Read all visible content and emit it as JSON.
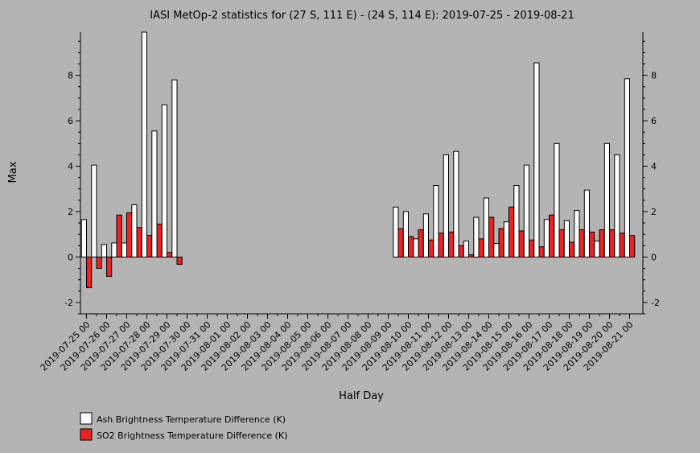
{
  "chart_data": {
    "type": "bar",
    "title": "IASI MetOp-2 statistics for (27 S, 111 E) - (24 S, 114 E): 2019-07-25 - 2019-08-21",
    "xlabel": "Half Day",
    "ylabel": "Max",
    "ylim": [
      -2.5,
      9.9
    ],
    "yticks": [
      -2,
      0,
      2,
      4,
      6,
      8
    ],
    "grid": false,
    "legend_position": "bottom-left",
    "date_ticks": [
      "2019-07-25 00",
      "2019-07-26 00",
      "2019-07-27 00",
      "2019-07-28 00",
      "2019-07-29 00",
      "2019-07-30 00",
      "2019-07-31 00",
      "2019-08-01 00",
      "2019-08-02 00",
      "2019-08-03 00",
      "2019-08-04 00",
      "2019-08-05 00",
      "2019-08-06 00",
      "2019-08-07 00",
      "2019-08-08 00",
      "2019-08-09 00",
      "2019-08-10 00",
      "2019-08-11 00",
      "2019-08-12 00",
      "2019-08-13 00",
      "2019-08-14 00",
      "2019-08-15 00",
      "2019-08-16 00",
      "2019-08-17 00",
      "2019-08-18 00",
      "2019-08-19 00",
      "2019-08-20 00",
      "2019-08-21 00"
    ],
    "categories": [
      "2019-07-25 00",
      "2019-07-25 12",
      "2019-07-26 00",
      "2019-07-26 12",
      "2019-07-27 00",
      "2019-07-27 12",
      "2019-07-28 00",
      "2019-07-28 12",
      "2019-07-29 00",
      "2019-07-29 12",
      "2019-08-09 12",
      "2019-08-10 00",
      "2019-08-10 12",
      "2019-08-11 00",
      "2019-08-11 12",
      "2019-08-12 00",
      "2019-08-12 12",
      "2019-08-13 00",
      "2019-08-13 12",
      "2019-08-14 00",
      "2019-08-14 12",
      "2019-08-15 00",
      "2019-08-15 12",
      "2019-08-16 00",
      "2019-08-16 12",
      "2019-08-17 00",
      "2019-08-17 12",
      "2019-08-18 00",
      "2019-08-18 12",
      "2019-08-19 00",
      "2019-08-19 12",
      "2019-08-20 00",
      "2019-08-20 12",
      "2019-08-21 00"
    ],
    "series": [
      {
        "name": "Ash Brightness Temperature Difference (K)",
        "color": "#ffffff",
        "values": [
          1.65,
          4.05,
          0.55,
          0.62,
          0.62,
          2.3,
          9.9,
          5.55,
          6.7,
          7.8,
          2.2,
          2.0,
          0.8,
          1.9,
          3.15,
          4.5,
          4.65,
          0.7,
          1.75,
          2.6,
          0.6,
          1.55,
          3.15,
          4.05,
          8.55,
          1.65,
          5.0,
          1.6,
          2.05,
          2.95,
          0.7,
          5.0,
          4.5,
          7.85
        ]
      },
      {
        "name": "SO2 Brightness Temperature Difference (K)",
        "color": "#ee2222",
        "values": [
          -1.35,
          -0.5,
          -0.85,
          1.85,
          1.95,
          1.3,
          0.95,
          1.45,
          0.2,
          -0.32,
          1.25,
          0.9,
          1.2,
          0.75,
          1.05,
          1.1,
          0.5,
          0.1,
          0.8,
          1.75,
          1.25,
          2.2,
          1.15,
          0.75,
          0.45,
          1.85,
          1.2,
          0.65,
          1.2,
          1.1,
          1.2,
          1.2,
          1.05,
          0.95
        ]
      }
    ]
  }
}
